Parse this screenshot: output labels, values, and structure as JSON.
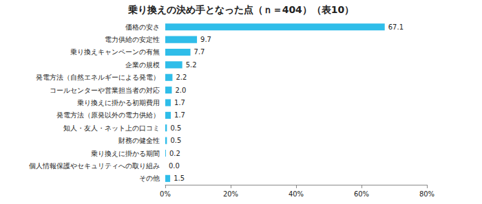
{
  "chart_data": {
    "type": "bar",
    "orientation": "horizontal",
    "title": "乗り換えの決め手となった点（ｎ＝404）（表10）",
    "categories": [
      "価格の安さ",
      "電力供給の安定性",
      "乗り換えキャンペーンの有無",
      "企業の規模",
      "発電方法（自然エネルギーによる発電）",
      "コールセンターや営業担当者の対応",
      "乗り換えに掛かる初期費用",
      "発電方法（原発以外の電力供給）",
      "知人・友人・ネット上の口コミ",
      "財務の健全性",
      "乗り換えに掛かる期間",
      "個人情報保護やセキュリティへの取り組み",
      "その他"
    ],
    "values": [
      67.1,
      9.7,
      7.7,
      5.2,
      2.2,
      2.0,
      1.7,
      1.7,
      0.5,
      0.5,
      0.2,
      0.0,
      1.5
    ],
    "value_labels": [
      "67.1",
      "9.7",
      "7.7",
      "5.2",
      "2.2",
      "2.0",
      "1.7",
      "1.7",
      "0.5",
      "0.5",
      "0.2",
      "0.0",
      "1.5"
    ],
    "data_labels": true,
    "color": "#2fbde9",
    "xlim": [
      0,
      80
    ],
    "xticks": [
      {
        "value": 0,
        "label": "0%"
      },
      {
        "value": 20,
        "label": "20%"
      },
      {
        "value": 40,
        "label": "40%"
      },
      {
        "value": 60,
        "label": "60%"
      },
      {
        "value": 80,
        "label": "80%"
      }
    ],
    "grid": false
  }
}
